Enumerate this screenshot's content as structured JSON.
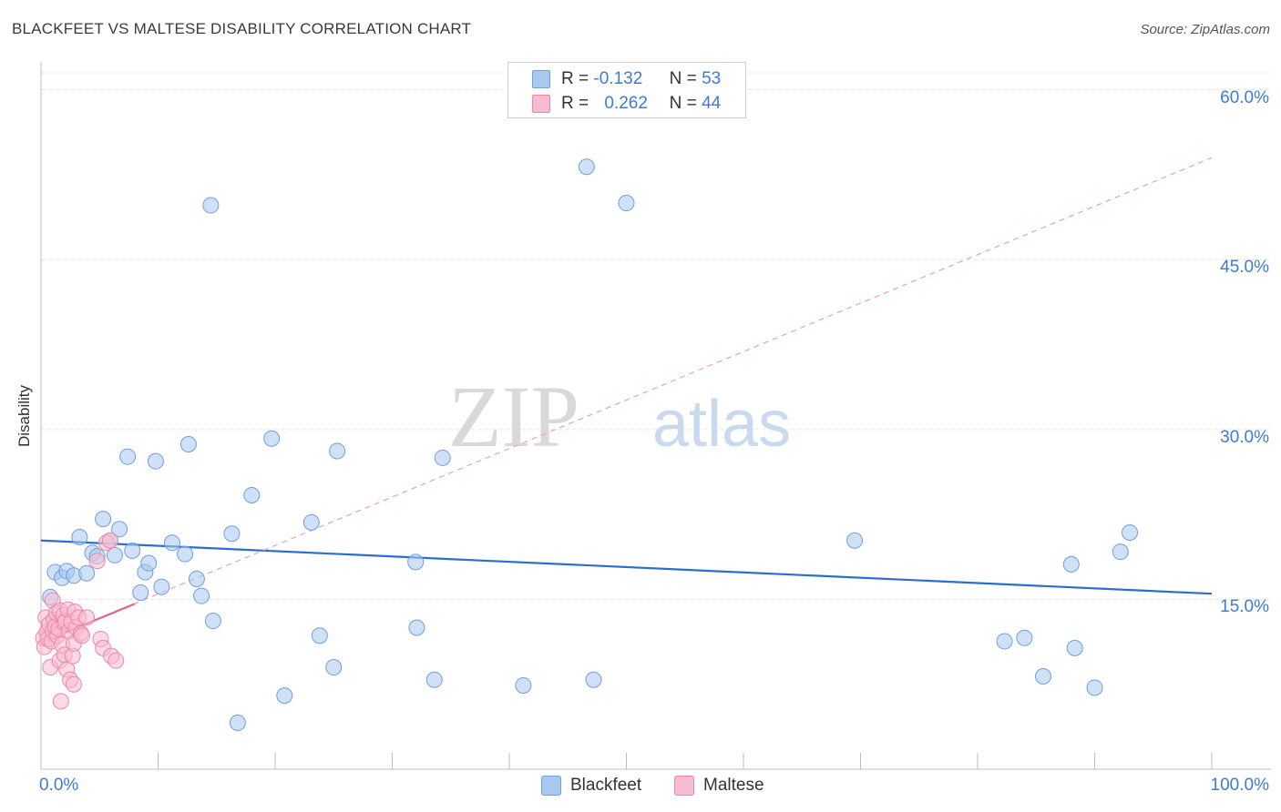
{
  "title": "BLACKFEET VS MALTESE DISABILITY CORRELATION CHART",
  "source": "Source: ZipAtlas.com",
  "watermark": {
    "zip": "ZIP",
    "atlas": "atlas"
  },
  "legend": {
    "r_label": "R =",
    "n_label": "N =",
    "rows": [
      {
        "r": "-0.132",
        "n": "53",
        "color": "#a9c8f0",
        "border": "#6f9fe0"
      },
      {
        "r": "0.262",
        "n": "44",
        "color": "#f7bcd0",
        "border": "#ef86a8"
      }
    ]
  },
  "bottom_legend": [
    "Blackfeet",
    "Maltese"
  ],
  "chart_data": {
    "type": "scatter",
    "title": "BLACKFEET VS MALTESE DISABILITY CORRELATION CHART",
    "xlabel": "",
    "ylabel": "Disability",
    "xlim": [
      0,
      100
    ],
    "ylim": [
      0,
      61.5
    ],
    "y_ticks": [
      {
        "value": 60,
        "label": "60.0%"
      },
      {
        "value": 45,
        "label": "45.0%"
      },
      {
        "value": 30,
        "label": "30.0%"
      },
      {
        "value": 15,
        "label": "15.0%"
      }
    ],
    "x_tick_labels": [
      {
        "value": 0,
        "label": "0.0%"
      },
      {
        "value": 100,
        "label": "100.0%"
      }
    ],
    "x_minor_ticks": [
      10,
      20,
      30,
      40,
      50,
      60,
      70,
      80,
      90,
      100
    ],
    "grid": true,
    "series": [
      {
        "name": "Blackfeet",
        "color": "#a9c8f0",
        "stroke": "#6f9fe0",
        "r": -0.132,
        "n": 53,
        "trend": {
          "x": [
            0,
            100
          ],
          "y": [
            20.2,
            15.5
          ],
          "color": "#2a6fd0",
          "dashed": false
        },
        "points": [
          [
            0.8,
            15.2
          ],
          [
            1.2,
            17.4
          ],
          [
            1.8,
            16.9
          ],
          [
            2.2,
            17.5
          ],
          [
            2.8,
            17.1
          ],
          [
            3.3,
            20.5
          ],
          [
            3.9,
            17.3
          ],
          [
            4.4,
            19.1
          ],
          [
            4.8,
            18.8
          ],
          [
            5.3,
            22.1
          ],
          [
            5.9,
            20.2
          ],
          [
            6.3,
            18.9
          ],
          [
            6.7,
            21.2
          ],
          [
            7.4,
            27.6
          ],
          [
            7.8,
            19.3
          ],
          [
            8.5,
            15.6
          ],
          [
            8.9,
            17.4
          ],
          [
            9.2,
            18.2
          ],
          [
            9.8,
            27.2
          ],
          [
            10.3,
            16.1
          ],
          [
            11.2,
            20.0
          ],
          [
            12.3,
            19.0
          ],
          [
            12.6,
            28.7
          ],
          [
            13.3,
            16.8
          ],
          [
            13.7,
            15.3
          ],
          [
            14.5,
            49.8
          ],
          [
            14.7,
            13.1
          ],
          [
            16.3,
            20.8
          ],
          [
            16.8,
            4.1
          ],
          [
            18.0,
            24.2
          ],
          [
            19.7,
            29.2
          ],
          [
            20.8,
            6.5
          ],
          [
            23.1,
            21.8
          ],
          [
            23.8,
            11.8
          ],
          [
            25.0,
            9.0
          ],
          [
            25.3,
            28.1
          ],
          [
            32.0,
            18.3
          ],
          [
            32.1,
            12.5
          ],
          [
            33.6,
            7.9
          ],
          [
            34.3,
            27.5
          ],
          [
            41.2,
            7.4
          ],
          [
            46.6,
            53.2
          ],
          [
            47.2,
            7.9
          ],
          [
            50.0,
            50.0
          ],
          [
            69.5,
            20.2
          ],
          [
            82.3,
            11.3
          ],
          [
            84.0,
            11.6
          ],
          [
            85.6,
            8.2
          ],
          [
            88.0,
            18.1
          ],
          [
            88.3,
            10.7
          ],
          [
            90.0,
            7.2
          ],
          [
            92.2,
            19.2
          ],
          [
            93.0,
            20.9
          ]
        ]
      },
      {
        "name": "Maltese",
        "color": "#f7bcd0",
        "stroke": "#ef86a8",
        "r": 0.262,
        "n": 44,
        "trend": {
          "x": [
            0,
            8.0
          ],
          "y": [
            11.2,
            14.6
          ],
          "extended": {
            "x": [
              0,
              100
            ],
            "y": [
              11.2,
              54.0
            ]
          },
          "color": "#e4608e"
        },
        "points": [
          [
            0.2,
            11.6
          ],
          [
            0.3,
            10.8
          ],
          [
            0.4,
            13.4
          ],
          [
            0.5,
            12.1
          ],
          [
            0.6,
            11.5
          ],
          [
            0.7,
            12.8
          ],
          [
            0.8,
            9.0
          ],
          [
            0.9,
            11.3
          ],
          [
            1.0,
            12.2
          ],
          [
            1.0,
            14.9
          ],
          [
            1.1,
            13.2
          ],
          [
            1.2,
            12.6
          ],
          [
            1.3,
            13.8
          ],
          [
            1.4,
            11.8
          ],
          [
            1.5,
            12.4
          ],
          [
            1.6,
            14.0
          ],
          [
            1.6,
            9.6
          ],
          [
            1.7,
            6.0
          ],
          [
            1.8,
            11.0
          ],
          [
            1.9,
            13.6
          ],
          [
            2.0,
            12.9
          ],
          [
            2.0,
            10.1
          ],
          [
            2.1,
            13.1
          ],
          [
            2.2,
            8.8
          ],
          [
            2.3,
            14.1
          ],
          [
            2.4,
            12.2
          ],
          [
            2.5,
            7.9
          ],
          [
            2.6,
            13.0
          ],
          [
            2.7,
            10.0
          ],
          [
            2.8,
            11.1
          ],
          [
            2.8,
            7.5
          ],
          [
            2.9,
            13.9
          ],
          [
            3.0,
            12.5
          ],
          [
            3.2,
            13.4
          ],
          [
            3.4,
            12.0
          ],
          [
            3.5,
            11.8
          ],
          [
            3.9,
            13.4
          ],
          [
            4.8,
            18.4
          ],
          [
            5.1,
            11.5
          ],
          [
            5.3,
            10.7
          ],
          [
            5.6,
            20.0
          ],
          [
            5.9,
            20.2
          ],
          [
            6.0,
            10.0
          ],
          [
            6.4,
            9.6
          ]
        ]
      }
    ]
  }
}
